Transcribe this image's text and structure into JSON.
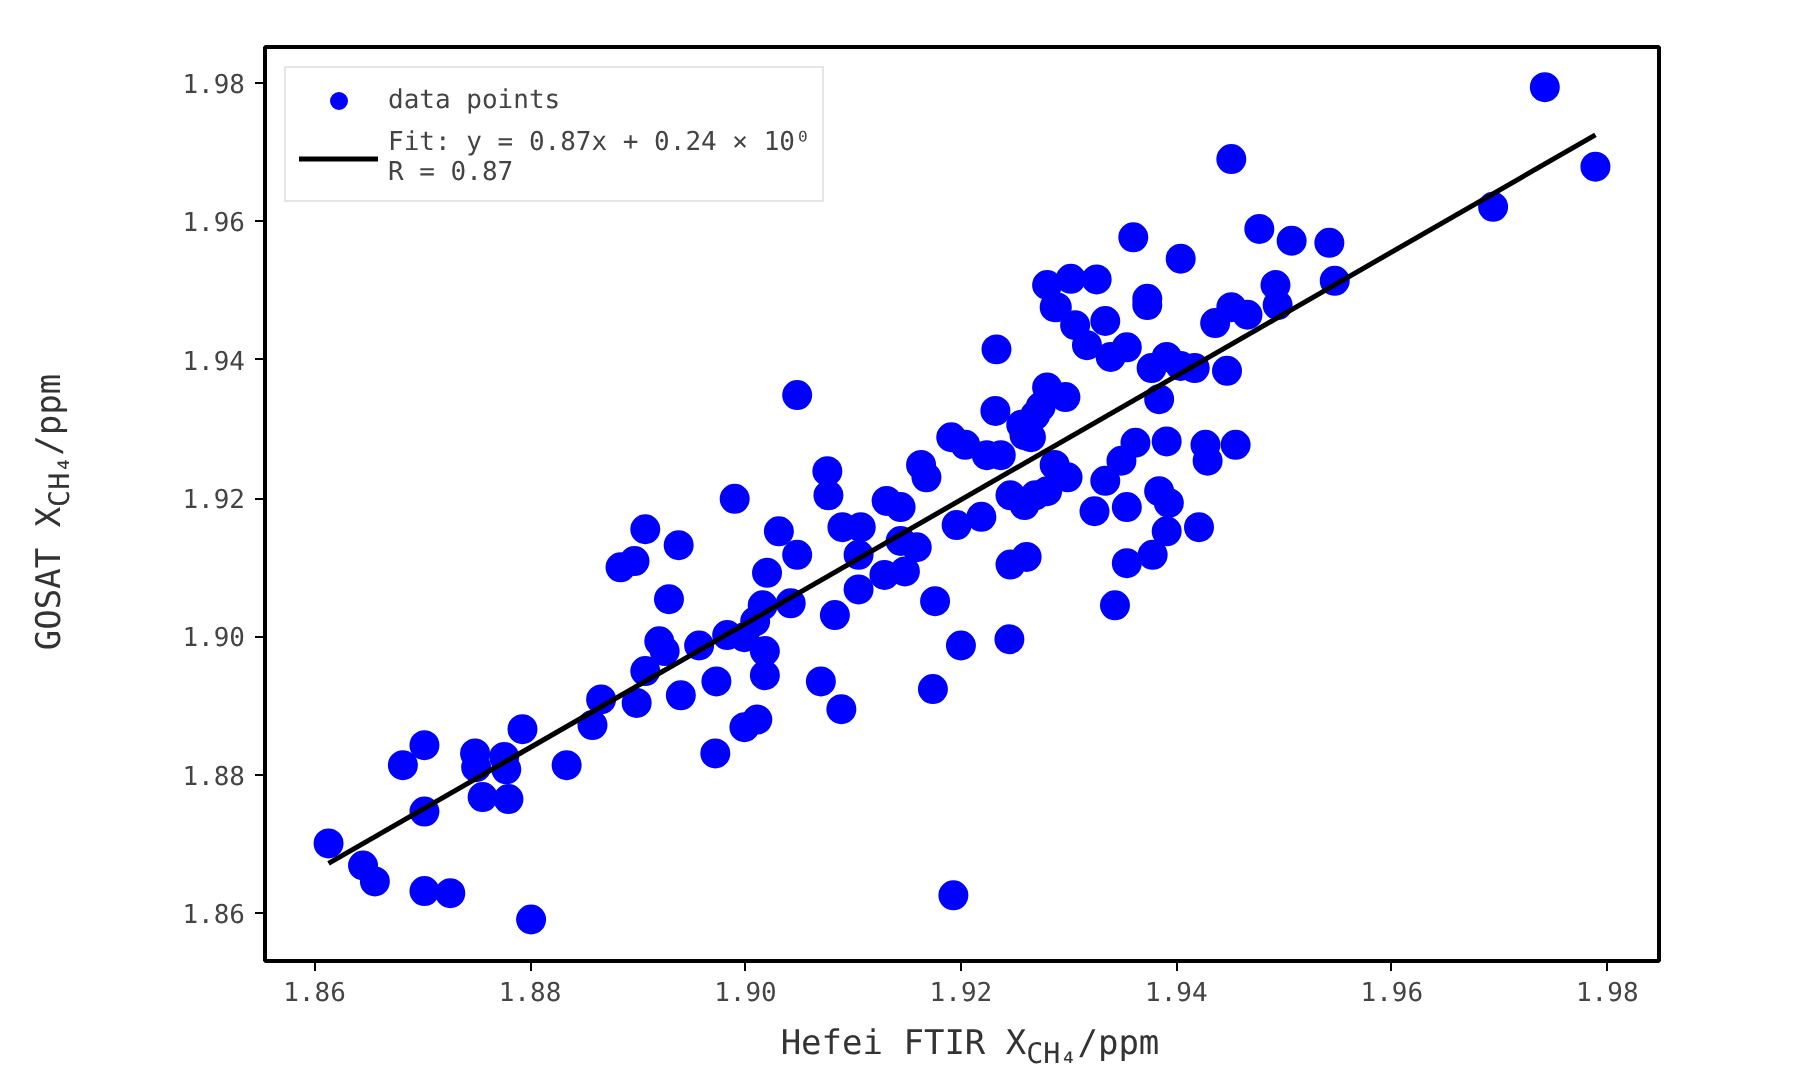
{
  "chart_data": {
    "type": "scatter",
    "xlabel": "Hefei FTIR X$_{CH₄}$/ppm",
    "ylabel": "GOSAT X$_{CH₄}$/ppm",
    "xlim": [
      1.8554,
      1.9848
    ],
    "ylim": [
      1.8531,
      1.9852
    ],
    "xticks": [
      1.86,
      1.88,
      {
        "value": 1.9,
        "label": "1.90"
      },
      1.92,
      1.94,
      1.96,
      1.98
    ],
    "yticks": [
      1.86,
      1.88,
      {
        "value": 1.9,
        "label": "1.90"
      },
      1.92,
      1.94,
      1.96,
      1.98
    ],
    "grid": false,
    "legend": "top left",
    "marker": "circle",
    "series": [
      {
        "name": "data points",
        "color": "#0000ff",
        "x": [
          1.8613,
          1.8645,
          1.8656,
          1.8702,
          1.8726,
          1.8801,
          1.8702,
          1.8682,
          1.8702,
          1.8749,
          1.875,
          1.8776,
          1.8778,
          1.8756,
          1.878,
          1.8793,
          1.8834,
          1.8858,
          1.8866,
          1.8899,
          1.8907,
          1.892,
          1.8925,
          1.894,
          1.8957,
          1.8973,
          1.8972,
          1.8983,
          1.8999,
          1.8999,
          1.8929,
          1.8938,
          1.8907,
          1.8884,
          1.8897,
          1.899,
          1.9048,
          1.9233,
          1.9076,
          1.9077,
          1.9031,
          1.9048,
          1.902,
          1.9016,
          1.9009,
          1.9018,
          1.9018,
          1.9011,
          1.9042,
          1.907,
          1.9089,
          1.9083,
          1.909,
          1.9107,
          1.9105,
          1.9105,
          1.9131,
          1.9144,
          1.9129,
          1.9148,
          1.9159,
          1.9144,
          1.9176,
          1.92,
          1.9174,
          1.9245,
          1.9163,
          1.9168,
          1.9191,
          1.9204,
          1.9196,
          1.9219,
          1.9224,
          1.9237,
          1.9232,
          1.9256,
          1.9265,
          1.928,
          1.9297,
          1.9274,
          1.9246,
          1.9269,
          1.9259,
          1.928,
          1.9299,
          1.9287,
          1.9246,
          1.9261,
          1.9324,
          1.9334,
          1.9354,
          1.9349,
          1.9362,
          1.9343,
          1.9354,
          1.9378,
          1.9384,
          1.9391,
          1.9391,
          1.9384,
          1.9287,
          1.9306,
          1.9334,
          1.9317,
          1.9354,
          1.9373,
          1.9391,
          1.9451,
          1.9742,
          1.9789,
          1.9694,
          1.936,
          1.9404,
          1.9477,
          1.9507,
          1.9542,
          1.9547,
          1.9492,
          1.9494,
          1.9436,
          1.9451,
          1.9466,
          1.9373,
          1.9302,
          1.928,
          1.9326,
          1.9289,
          1.9339,
          1.9377,
          1.9404,
          1.9417,
          1.9447,
          1.9269,
          1.9259,
          1.9427,
          1.9429,
          1.9455,
          1.9393,
          1.9421,
          1.9193
        ],
        "values": [
          1.8701,
          1.8669,
          1.8646,
          1.8632,
          1.8629,
          1.8591,
          1.8747,
          1.8814,
          1.8843,
          1.8831,
          1.8811,
          1.8826,
          1.8808,
          1.8768,
          1.8765,
          1.8866,
          1.8814,
          1.8872,
          1.8909,
          1.8904,
          1.895,
          1.8993,
          1.8979,
          1.8915,
          1.8987,
          1.8935,
          1.8831,
          1.9002,
          1.8999,
          1.8869,
          1.9054,
          1.9132,
          1.9155,
          1.91,
          1.9109,
          1.9199,
          1.9349,
          1.9415,
          1.9239,
          1.9204,
          1.9152,
          1.9118,
          1.9092,
          1.9045,
          1.9022,
          1.8979,
          1.8944,
          1.888,
          1.9048,
          1.8935,
          1.8895,
          1.9031,
          1.9158,
          1.9158,
          1.9118,
          1.9068,
          1.9196,
          1.9187,
          1.9089,
          1.9094,
          1.9129,
          1.9138,
          1.9051,
          1.8987,
          1.8924,
          1.8996,
          1.9248,
          1.923,
          1.9288,
          1.9277,
          1.9161,
          1.9173,
          1.9262,
          1.9262,
          1.9326,
          1.9306,
          1.9288,
          1.936,
          1.9346,
          1.9332,
          1.9204,
          1.9204,
          1.919,
          1.921,
          1.923,
          1.9248,
          1.9104,
          1.9115,
          1.9181,
          1.9225,
          1.9187,
          1.9254,
          1.928,
          1.9045,
          1.9106,
          1.9118,
          1.921,
          1.9282,
          1.9152,
          1.9343,
          1.9476,
          1.945,
          1.9456,
          1.9421,
          1.9418,
          1.9479,
          1.9404,
          1.969,
          1.9794,
          1.9679,
          1.9621,
          1.9577,
          1.9546,
          1.9589,
          1.9572,
          1.9569,
          1.9514,
          1.9508,
          1.9479,
          1.9453,
          1.9476,
          1.9465,
          1.9488,
          1.9517,
          1.9508,
          1.9516,
          1.9476,
          1.9404,
          1.9388,
          1.9391,
          1.9388,
          1.9384,
          1.932,
          1.9291,
          1.9277,
          1.9254,
          1.9277,
          1.9193,
          1.9158,
          1.8626
        ]
      },
      {
        "name": "Fit: y = 0.87x + 0.24 × 10⁰\nR = 0.87",
        "type": "line",
        "marker": "none",
        "color": "#000000",
        "x": [
          1.8613,
          1.9789
        ],
        "values": [
          1.8672,
          1.9725
        ]
      }
    ]
  }
}
